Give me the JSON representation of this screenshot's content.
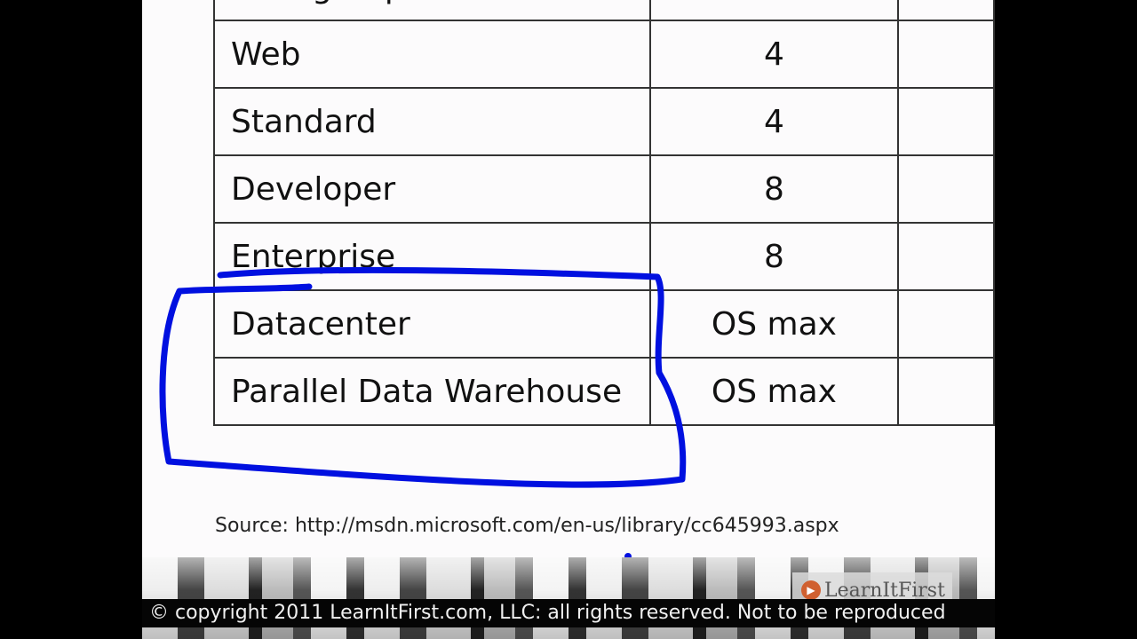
{
  "table": {
    "rows": [
      {
        "edition": "Workgroup",
        "value": "",
        "extra": ""
      },
      {
        "edition": "Web",
        "value": "4",
        "extra": ""
      },
      {
        "edition": "Standard",
        "value": "4",
        "extra": ""
      },
      {
        "edition": "Developer",
        "value": "8",
        "extra": ""
      },
      {
        "edition": "Enterprise",
        "value": "8",
        "extra": ""
      },
      {
        "edition": "Datacenter",
        "value": "OS max",
        "extra": ""
      },
      {
        "edition": "Parallel Data Warehouse",
        "value": "OS max",
        "extra": ""
      }
    ]
  },
  "source": "Source: http://msdn.microsoft.com/en-us/library/cc645993.aspx",
  "logo": {
    "text": "LearnItFirst",
    "icon": "play-icon"
  },
  "copyright": "© copyright 2011 LearnItFirst.com, LLC: all rights reserved. Not to be reproduced",
  "annotation_color": "#0010e0"
}
